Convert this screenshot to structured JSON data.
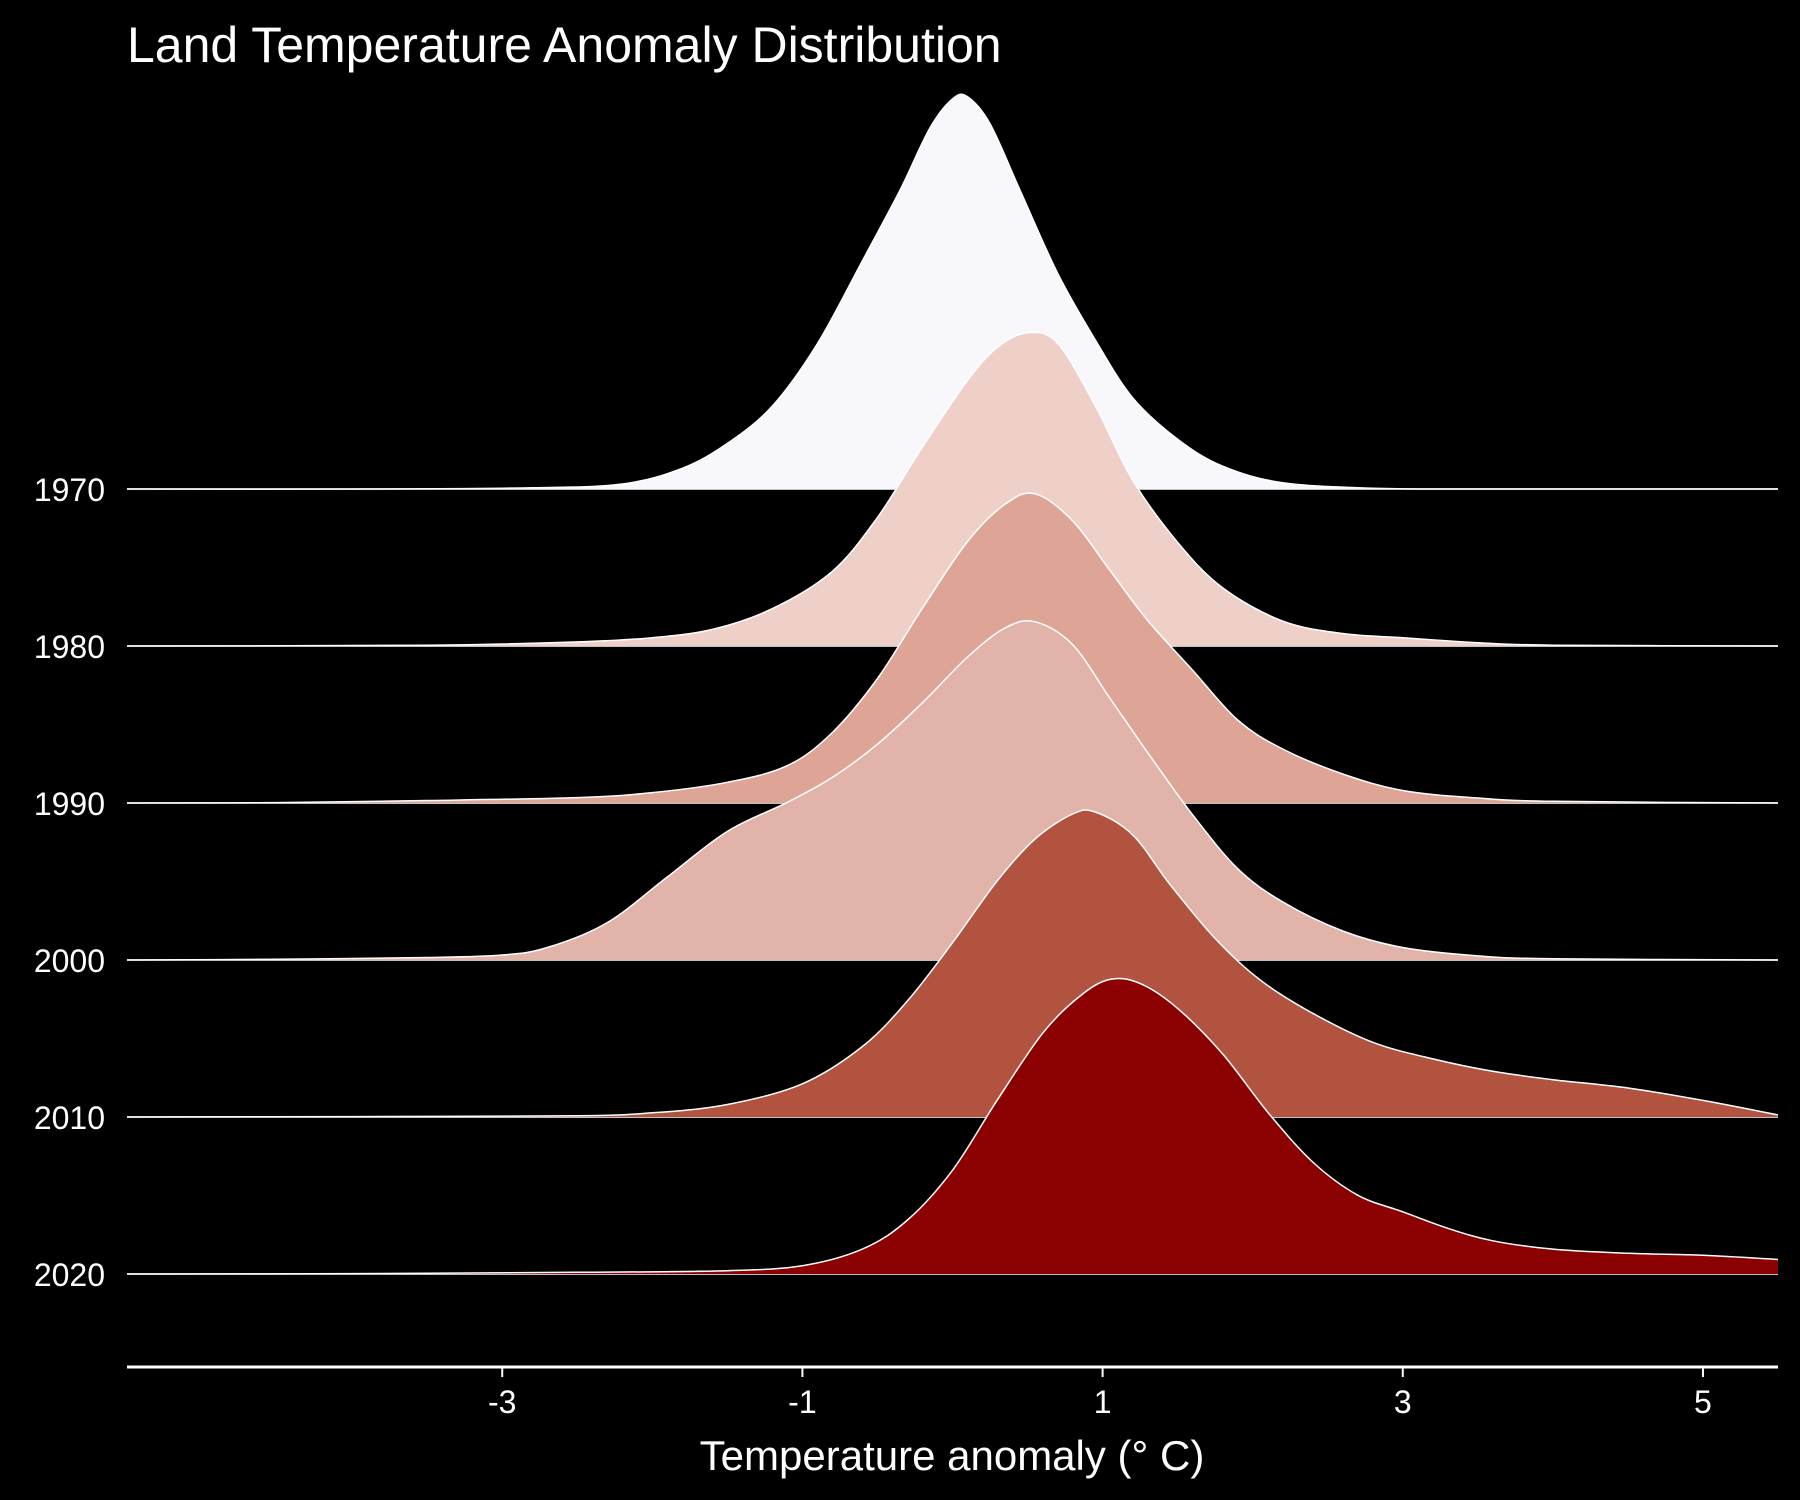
{
  "chart_data": {
    "type": "ridgeline",
    "title": "Land Temperature Anomaly Distribution",
    "xlabel": "Temperature anomaly (° C)",
    "ylabel": "",
    "xlim": [
      -5.5,
      5.5
    ],
    "x_ticks": [
      -3,
      -1,
      1,
      3,
      5
    ],
    "x_tick_labels": [
      "-3",
      "-1",
      "1",
      "3",
      "5"
    ],
    "grid": false,
    "outline_color": "#ffffff",
    "background": "#000000",
    "series": [
      {
        "name": "1970",
        "color": "#f8f8fc",
        "points": [
          [
            -5.5,
            0
          ],
          [
            -3.8,
            0
          ],
          [
            -2.8,
            0.003
          ],
          [
            -2.2,
            0.012
          ],
          [
            -1.8,
            0.05
          ],
          [
            -1.5,
            0.11
          ],
          [
            -1.2,
            0.2
          ],
          [
            -0.9,
            0.35
          ],
          [
            -0.6,
            0.55
          ],
          [
            -0.35,
            0.72
          ],
          [
            -0.15,
            0.87
          ],
          [
            0.0,
            0.94
          ],
          [
            0.1,
            0.945
          ],
          [
            0.25,
            0.88
          ],
          [
            0.45,
            0.72
          ],
          [
            0.7,
            0.52
          ],
          [
            0.95,
            0.36
          ],
          [
            1.2,
            0.22
          ],
          [
            1.5,
            0.12
          ],
          [
            1.8,
            0.055
          ],
          [
            2.2,
            0.015
          ],
          [
            2.8,
            0.002
          ],
          [
            3.5,
            0
          ],
          [
            5.5,
            0
          ]
        ]
      },
      {
        "name": "1980",
        "color": "#efd0c9",
        "points": [
          [
            -5.5,
            0
          ],
          [
            -3.5,
            0.002
          ],
          [
            -2.5,
            0.01
          ],
          [
            -2.0,
            0.02
          ],
          [
            -1.6,
            0.04
          ],
          [
            -1.2,
            0.09
          ],
          [
            -0.8,
            0.18
          ],
          [
            -0.5,
            0.31
          ],
          [
            -0.2,
            0.48
          ],
          [
            0.1,
            0.64
          ],
          [
            0.3,
            0.72
          ],
          [
            0.5,
            0.755
          ],
          [
            0.7,
            0.73
          ],
          [
            0.95,
            0.58
          ],
          [
            1.2,
            0.4
          ],
          [
            1.5,
            0.25
          ],
          [
            1.8,
            0.14
          ],
          [
            2.2,
            0.06
          ],
          [
            2.6,
            0.03
          ],
          [
            3.0,
            0.02
          ],
          [
            3.5,
            0.008
          ],
          [
            4.0,
            0.002
          ],
          [
            5.5,
            0
          ]
        ]
      },
      {
        "name": "1990",
        "color": "#dea597",
        "points": [
          [
            -5.5,
            0
          ],
          [
            -4.5,
            0.001
          ],
          [
            -3.5,
            0.006
          ],
          [
            -2.5,
            0.013
          ],
          [
            -2.0,
            0.025
          ],
          [
            -1.5,
            0.05
          ],
          [
            -1.1,
            0.09
          ],
          [
            -0.8,
            0.17
          ],
          [
            -0.5,
            0.3
          ],
          [
            -0.2,
            0.47
          ],
          [
            0.1,
            0.63
          ],
          [
            0.35,
            0.72
          ],
          [
            0.55,
            0.745
          ],
          [
            0.8,
            0.68
          ],
          [
            1.05,
            0.56
          ],
          [
            1.3,
            0.44
          ],
          [
            1.6,
            0.32
          ],
          [
            1.9,
            0.2
          ],
          [
            2.2,
            0.13
          ],
          [
            2.6,
            0.07
          ],
          [
            3.0,
            0.03
          ],
          [
            3.5,
            0.012
          ],
          [
            4.0,
            0.004
          ],
          [
            5.5,
            0
          ]
        ]
      },
      {
        "name": "2000",
        "color": "#e2b3a8",
        "points": [
          [
            -5.5,
            0
          ],
          [
            -4.5,
            0.002
          ],
          [
            -3.5,
            0.006
          ],
          [
            -3.0,
            0.012
          ],
          [
            -2.7,
            0.03
          ],
          [
            -2.3,
            0.09
          ],
          [
            -1.9,
            0.2
          ],
          [
            -1.5,
            0.31
          ],
          [
            -1.1,
            0.38
          ],
          [
            -0.8,
            0.44
          ],
          [
            -0.5,
            0.52
          ],
          [
            -0.2,
            0.62
          ],
          [
            0.1,
            0.73
          ],
          [
            0.35,
            0.8
          ],
          [
            0.55,
            0.815
          ],
          [
            0.8,
            0.76
          ],
          [
            1.05,
            0.63
          ],
          [
            1.3,
            0.5
          ],
          [
            1.6,
            0.35
          ],
          [
            1.9,
            0.22
          ],
          [
            2.2,
            0.14
          ],
          [
            2.6,
            0.07
          ],
          [
            3.0,
            0.03
          ],
          [
            3.5,
            0.01
          ],
          [
            4.0,
            0.003
          ],
          [
            5.5,
            0
          ]
        ]
      },
      {
        "name": "2010",
        "color": "#b25340",
        "points": [
          [
            -5.5,
            0
          ],
          [
            -4.0,
            0.001
          ],
          [
            -2.5,
            0.003
          ],
          [
            -2.0,
            0.01
          ],
          [
            -1.5,
            0.03
          ],
          [
            -1.0,
            0.08
          ],
          [
            -0.6,
            0.17
          ],
          [
            -0.3,
            0.28
          ],
          [
            0.0,
            0.42
          ],
          [
            0.3,
            0.57
          ],
          [
            0.55,
            0.67
          ],
          [
            0.8,
            0.73
          ],
          [
            0.95,
            0.735
          ],
          [
            1.2,
            0.68
          ],
          [
            1.45,
            0.56
          ],
          [
            1.75,
            0.43
          ],
          [
            2.05,
            0.33
          ],
          [
            2.4,
            0.25
          ],
          [
            2.8,
            0.18
          ],
          [
            3.2,
            0.14
          ],
          [
            3.6,
            0.11
          ],
          [
            4.0,
            0.09
          ],
          [
            4.5,
            0.07
          ],
          [
            5.0,
            0.04
          ],
          [
            5.5,
            0.005
          ]
        ]
      },
      {
        "name": "2020",
        "color": "#8b0000",
        "points": [
          [
            -5.5,
            0
          ],
          [
            -4.0,
            0.001
          ],
          [
            -2.5,
            0.004
          ],
          [
            -1.5,
            0.008
          ],
          [
            -1.0,
            0.02
          ],
          [
            -0.6,
            0.06
          ],
          [
            -0.3,
            0.13
          ],
          [
            0.0,
            0.25
          ],
          [
            0.3,
            0.42
          ],
          [
            0.6,
            0.58
          ],
          [
            0.85,
            0.67
          ],
          [
            1.05,
            0.71
          ],
          [
            1.25,
            0.7
          ],
          [
            1.5,
            0.64
          ],
          [
            1.8,
            0.53
          ],
          [
            2.1,
            0.39
          ],
          [
            2.4,
            0.27
          ],
          [
            2.7,
            0.19
          ],
          [
            3.0,
            0.15
          ],
          [
            3.3,
            0.11
          ],
          [
            3.6,
            0.08
          ],
          [
            4.0,
            0.06
          ],
          [
            4.5,
            0.05
          ],
          [
            5.0,
            0.045
          ],
          [
            5.5,
            0.035
          ]
        ]
      }
    ]
  }
}
